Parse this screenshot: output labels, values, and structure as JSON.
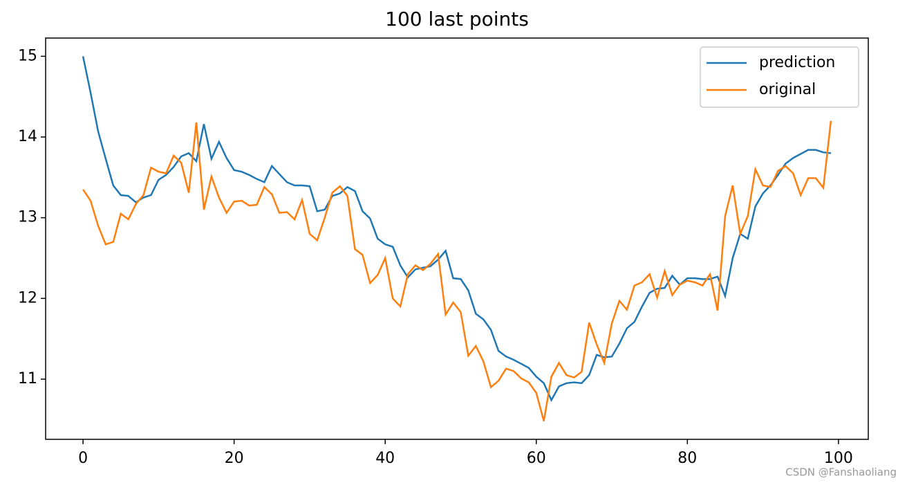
{
  "chart_data": {
    "type": "line",
    "title": "100 last points",
    "x": [
      0,
      1,
      2,
      3,
      4,
      5,
      6,
      7,
      8,
      9,
      10,
      11,
      12,
      13,
      14,
      15,
      16,
      17,
      18,
      19,
      20,
      21,
      22,
      23,
      24,
      25,
      26,
      27,
      28,
      29,
      30,
      31,
      32,
      33,
      34,
      35,
      36,
      37,
      38,
      39,
      40,
      41,
      42,
      43,
      44,
      45,
      46,
      47,
      48,
      49,
      50,
      51,
      52,
      53,
      54,
      55,
      56,
      57,
      58,
      59,
      60,
      61,
      62,
      63,
      64,
      65,
      66,
      67,
      68,
      69,
      70,
      71,
      72,
      73,
      74,
      75,
      76,
      77,
      78,
      79,
      80,
      81,
      82,
      83,
      84,
      85,
      86,
      87,
      88,
      89,
      90,
      91,
      92,
      93,
      94,
      95,
      96,
      97,
      98,
      99
    ],
    "series": [
      {
        "name": "prediction",
        "color": "#1f77b4",
        "values": [
          15.0,
          14.55,
          14.07,
          13.73,
          13.4,
          13.28,
          13.27,
          13.19,
          13.25,
          13.28,
          13.47,
          13.53,
          13.63,
          13.76,
          13.8,
          13.7,
          14.16,
          13.73,
          13.94,
          13.74,
          13.59,
          13.57,
          13.53,
          13.48,
          13.44,
          13.64,
          13.54,
          13.44,
          13.4,
          13.4,
          13.39,
          13.08,
          13.1,
          13.27,
          13.3,
          13.38,
          13.33,
          13.08,
          12.99,
          12.74,
          12.67,
          12.64,
          12.41,
          12.26,
          12.36,
          12.38,
          12.4,
          12.48,
          12.59,
          12.25,
          12.24,
          12.1,
          11.81,
          11.74,
          11.61,
          11.35,
          11.28,
          11.24,
          11.19,
          11.14,
          11.03,
          10.95,
          10.74,
          10.91,
          10.95,
          10.96,
          10.95,
          11.05,
          11.3,
          11.27,
          11.28,
          11.44,
          11.63,
          11.71,
          11.9,
          12.07,
          12.12,
          12.13,
          12.28,
          12.17,
          12.25,
          12.25,
          12.24,
          12.24,
          12.27,
          12.03,
          12.5,
          12.8,
          12.74,
          13.14,
          13.3,
          13.4,
          13.53,
          13.67,
          13.74,
          13.79,
          13.84,
          13.84,
          13.81,
          13.8
        ]
      },
      {
        "name": "original",
        "color": "#ff7f0e",
        "values": [
          13.35,
          13.21,
          12.9,
          12.67,
          12.7,
          13.05,
          12.98,
          13.17,
          13.28,
          13.62,
          13.57,
          13.55,
          13.77,
          13.68,
          13.31,
          14.18,
          13.1,
          13.51,
          13.25,
          13.06,
          13.2,
          13.21,
          13.15,
          13.16,
          13.38,
          13.29,
          13.06,
          13.07,
          12.98,
          13.22,
          12.8,
          12.72,
          13.0,
          13.31,
          13.39,
          13.27,
          12.61,
          12.54,
          12.19,
          12.29,
          12.5,
          12.0,
          11.9,
          12.3,
          12.41,
          12.35,
          12.43,
          12.55,
          11.8,
          11.95,
          11.83,
          11.29,
          11.41,
          11.22,
          10.9,
          10.98,
          11.13,
          11.1,
          11.01,
          10.96,
          10.83,
          10.48,
          11.03,
          11.2,
          11.05,
          11.02,
          11.09,
          11.7,
          11.43,
          11.2,
          11.69,
          11.97,
          11.86,
          12.16,
          12.2,
          12.3,
          12.01,
          12.34,
          12.04,
          12.17,
          12.22,
          12.2,
          12.16,
          12.3,
          11.85,
          13.02,
          13.4,
          12.8,
          13.02,
          13.6,
          13.4,
          13.38,
          13.58,
          13.64,
          13.55,
          13.28,
          13.49,
          13.49,
          13.37,
          14.2
        ]
      }
    ],
    "xlim": [
      -4.95,
      103.95
    ],
    "ylim": [
      10.254,
      15.226
    ],
    "xticks": [
      0,
      20,
      40,
      60,
      80,
      100
    ],
    "yticks": [
      11,
      12,
      13,
      14,
      15
    ],
    "grid": false,
    "legend": "upper right",
    "watermark": "CSDN @Fanshaoliang"
  }
}
